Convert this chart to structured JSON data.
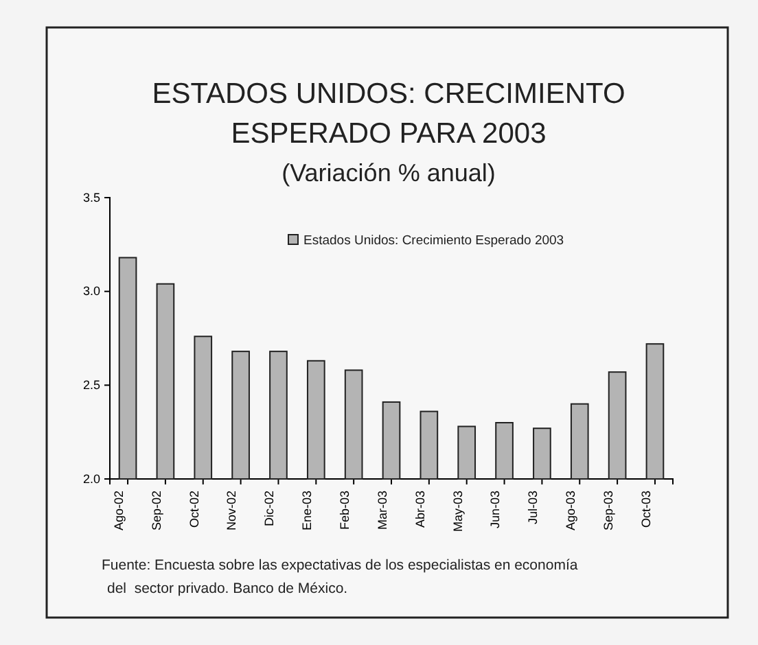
{
  "chart_data": {
    "type": "bar",
    "title": "ESTADOS UNIDOS: CRECIMIENTO ESPERADO PARA 2003",
    "subtitle": "(Variación % anual)",
    "categories": [
      "Ago-02",
      "Sep-02",
      "Oct-02",
      "Nov-02",
      "Dic-02",
      "Ene-03",
      "Feb-03",
      "Mar-03",
      "Abr-03",
      "May-03",
      "Jun-03",
      "Jul-03",
      "Ago-03",
      "Sep-03",
      "Oct-03"
    ],
    "series": [
      {
        "name": "Estados Unidos: Crecimiento Esperado 2003",
        "color": "#b4b4b4",
        "values": [
          3.18,
          3.04,
          2.76,
          2.68,
          2.68,
          2.63,
          2.58,
          2.41,
          2.36,
          2.28,
          2.3,
          2.27,
          2.4,
          2.57,
          2.72
        ]
      }
    ],
    "ylim": [
      2.0,
      3.5
    ],
    "yticks": [
      {
        "value": 2.0,
        "label": "2.0"
      },
      {
        "value": 2.5,
        "label": "2.5"
      },
      {
        "value": 3.0,
        "label": "3.0"
      },
      {
        "value": 3.5,
        "label": "3.5"
      }
    ],
    "legend": "top right",
    "grid": false,
    "annotations": [
      "Fuente: Encuesta sobre las expectativas de los especialistas en economía del  sector privado. Banco de México."
    ]
  }
}
